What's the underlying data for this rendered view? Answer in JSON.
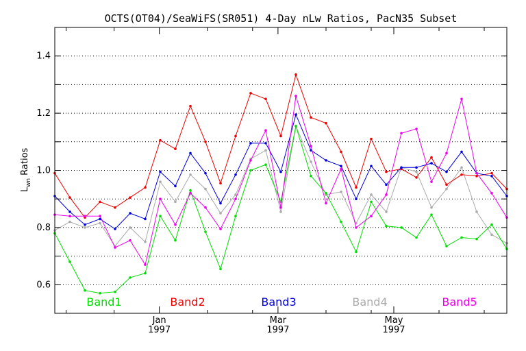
{
  "chart_data": {
    "type": "line",
    "title": "OCTS(OT04)/SeaWiFS(SR051) 4-Day nLw Ratios, PacN35 Subset",
    "ylabel": "L",
    "ylabel_sub": "wn",
    "ylabel_rest": " Ratios",
    "ylim": [
      0.5,
      1.5
    ],
    "xlim": [
      0,
      40
    ],
    "y_ticks": [
      "0.6",
      "0.8",
      "1.0",
      "1.2",
      "1.4"
    ],
    "y_tick_values": [
      0.6,
      0.8,
      1.0,
      1.2,
      1.4
    ],
    "x_ticks": [
      {
        "at": 9.25,
        "month": "Jan",
        "year": "1997"
      },
      {
        "at": 19.75,
        "month": "Mar",
        "year": "1997"
      },
      {
        "at": 30.0,
        "month": "May",
        "year": "1997"
      }
    ],
    "grid": true,
    "legend_position": "bottom",
    "series": [
      {
        "name": "Band1",
        "color": "#00dd00",
        "values": [
          0.78,
          0.68,
          0.58,
          0.57,
          0.575,
          0.625,
          0.64,
          0.84,
          0.755,
          0.93,
          0.785,
          0.655,
          0.84,
          1.0,
          1.02,
          0.89,
          1.155,
          0.98,
          0.92,
          0.82,
          0.715,
          0.89,
          0.805,
          0.8,
          0.765,
          0.845,
          0.735,
          0.765,
          0.76,
          0.81,
          0.725
        ]
      },
      {
        "name": "Band2",
        "color": "#ee0000",
        "values": [
          0.99,
          0.905,
          0.835,
          0.89,
          0.87,
          0.905,
          0.94,
          1.105,
          1.075,
          1.225,
          1.1,
          0.955,
          1.12,
          1.27,
          1.25,
          1.12,
          1.335,
          1.185,
          1.165,
          1.065,
          0.94,
          1.11,
          0.995,
          1.005,
          0.975,
          1.045,
          0.95,
          0.985,
          0.98,
          0.99,
          0.935
        ]
      },
      {
        "name": "Band3",
        "color": "#0000dd",
        "values": [
          0.91,
          0.855,
          0.81,
          0.83,
          0.795,
          0.85,
          0.83,
          0.995,
          0.945,
          1.06,
          0.99,
          0.885,
          0.985,
          1.095,
          1.095,
          0.995,
          1.195,
          1.07,
          1.035,
          1.015,
          0.9,
          1.015,
          0.95,
          1.01,
          1.01,
          1.025,
          0.995,
          1.065,
          0.99,
          0.98,
          0.91
        ]
      },
      {
        "name": "Band4",
        "color": "#aaaaaa",
        "values": [
          0.79,
          0.82,
          0.8,
          0.815,
          0.735,
          0.8,
          0.75,
          0.96,
          0.89,
          0.985,
          0.935,
          0.85,
          0.915,
          1.04,
          1.07,
          0.855,
          1.155,
          1.03,
          0.915,
          0.925,
          0.815,
          0.915,
          0.855,
          1.01,
          0.995,
          0.87,
          0.935,
          1.01,
          0.855,
          0.775,
          0.745
        ]
      },
      {
        "name": "Band5",
        "color": "#ee00ee",
        "values": [
          0.845,
          0.84,
          0.84,
          0.84,
          0.73,
          0.755,
          0.67,
          0.9,
          0.81,
          0.92,
          0.87,
          0.795,
          0.9,
          1.035,
          1.14,
          0.87,
          1.26,
          1.085,
          0.885,
          1.005,
          0.8,
          0.84,
          0.915,
          1.13,
          1.145,
          0.96,
          1.06,
          1.25,
          0.99,
          0.92,
          0.835
        ]
      }
    ]
  }
}
